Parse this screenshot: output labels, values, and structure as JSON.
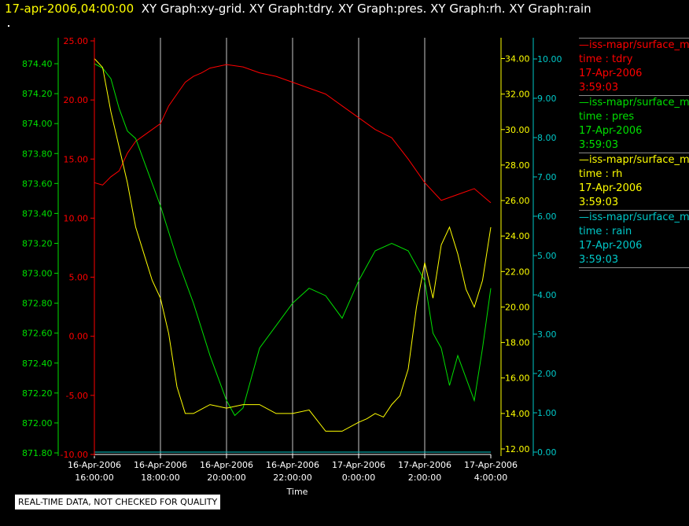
{
  "header": {
    "timestamp": "17-apr-2006,04:00:00",
    "titles": "XY Graph:xy-grid.  XY Graph:tdry.  XY Graph:pres.  XY Graph:rh.  XY Graph:rain"
  },
  "disclaimer": "REAL-TIME DATA, NOT CHECKED FOR QUALITY",
  "colors": {
    "tdry": "#ff0000",
    "pres": "#00e000",
    "rh": "#ffff00",
    "rain": "#00c8c8",
    "grid": "#c8c8c8",
    "axis_text": "#ffffff"
  },
  "legend": [
    {
      "source": "—iss-mapr/surface_m",
      "field": "time : tdry",
      "date": "17-Apr-2006",
      "time": "3:59:03",
      "color": "#ff0000"
    },
    {
      "source": "—iss-mapr/surface_m",
      "field": "time : pres",
      "date": "17-Apr-2006",
      "time": "3:59:03",
      "color": "#00e000"
    },
    {
      "source": "—iss-mapr/surface_m",
      "field": "time : rh",
      "date": "17-Apr-2006",
      "time": "3:59:03",
      "color": "#ffff00"
    },
    {
      "source": "—iss-mapr/surface_m",
      "field": "time : rain",
      "date": "17-Apr-2006",
      "time": "3:59:03",
      "color": "#00c8c8"
    }
  ],
  "chart_data": {
    "type": "line",
    "xlabel": "Time",
    "x_ticks": [
      {
        "date": "16-Apr-2006",
        "time": "16:00:00"
      },
      {
        "date": "16-Apr-2006",
        "time": "18:00:00"
      },
      {
        "date": "16-Apr-2006",
        "time": "20:00:00"
      },
      {
        "date": "16-Apr-2006",
        "time": "22:00:00"
      },
      {
        "date": "17-Apr-2006",
        "time": "0:00:00"
      },
      {
        "date": "17-Apr-2006",
        "time": "2:00:00"
      },
      {
        "date": "17-Apr-2006",
        "time": "4:00:00"
      }
    ],
    "x_range_hours": [
      16,
      28
    ],
    "grid": "vertical",
    "axes": {
      "tdry": {
        "ylim": [
          -10,
          25
        ],
        "ticks": [
          "25.00",
          "20.00",
          "15.00",
          "10.00",
          "5.00",
          "0.00",
          "-5.00",
          "-10.00"
        ]
      },
      "pres": {
        "ylim": [
          871.8,
          874.5
        ],
        "ticks": [
          "874.40",
          "874.20",
          "874.00",
          "873.80",
          "873.60",
          "873.40",
          "873.20",
          "873.00",
          "872.80",
          "872.60",
          "872.40",
          "872.20",
          "872.00",
          "871.80"
        ]
      },
      "rh": {
        "ylim": [
          12,
          34.2
        ],
        "ticks": [
          "34.00",
          "32.00",
          "30.00",
          "28.00",
          "26.00",
          "24.00",
          "22.00",
          "20.00",
          "18.00",
          "16.00",
          "14.00",
          "12.00"
        ]
      },
      "rain": {
        "ylim": [
          0,
          10
        ],
        "ticks": [
          "10.00",
          "9.00",
          "8.00",
          "7.00",
          "6.00",
          "5.00",
          "4.00",
          "3.00",
          "2.00",
          "1.00",
          "0.00"
        ]
      }
    },
    "series": [
      {
        "name": "tdry",
        "axis": "tdry",
        "x": [
          16.0,
          16.25,
          16.5,
          16.75,
          17.0,
          17.25,
          17.5,
          17.75,
          18.0,
          18.25,
          18.5,
          18.75,
          19.0,
          19.25,
          19.5,
          20.0,
          20.5,
          21.0,
          21.5,
          22.0,
          22.5,
          23.0,
          23.5,
          24.0,
          24.5,
          25.0,
          25.5,
          26.0,
          26.5,
          27.0,
          27.5,
          28.0
        ],
        "values": [
          13.0,
          12.8,
          13.5,
          14.0,
          15.5,
          16.5,
          17.0,
          17.5,
          18.0,
          19.5,
          20.5,
          21.5,
          22.0,
          22.3,
          22.7,
          23.0,
          22.8,
          22.3,
          22.0,
          21.5,
          21.0,
          20.5,
          19.5,
          18.5,
          17.5,
          16.8,
          15.0,
          13.0,
          11.5,
          12.0,
          12.5,
          11.3
        ]
      },
      {
        "name": "pres",
        "axis": "pres",
        "x": [
          16.0,
          16.25,
          16.5,
          16.75,
          17.0,
          17.25,
          17.5,
          17.75,
          18.0,
          18.5,
          19.0,
          19.5,
          20.0,
          20.25,
          20.5,
          20.75,
          21.0,
          21.5,
          22.0,
          22.5,
          23.0,
          23.5,
          24.0,
          24.5,
          25.0,
          25.5,
          26.0,
          26.25,
          26.5,
          26.75,
          27.0,
          27.25,
          27.5,
          27.75,
          28.0
        ],
        "values": [
          874.4,
          874.37,
          874.3,
          874.1,
          873.95,
          873.9,
          873.75,
          873.6,
          873.45,
          873.1,
          872.8,
          872.45,
          872.15,
          872.05,
          872.1,
          872.3,
          872.5,
          872.65,
          872.8,
          872.9,
          872.85,
          872.7,
          872.95,
          873.15,
          873.2,
          873.15,
          872.95,
          872.6,
          872.5,
          872.25,
          872.45,
          872.3,
          872.15,
          872.5,
          872.9
        ]
      },
      {
        "name": "rh",
        "axis": "rh",
        "x": [
          16.0,
          16.25,
          16.5,
          16.75,
          17.0,
          17.25,
          17.5,
          17.75,
          18.0,
          18.25,
          18.5,
          18.75,
          19.0,
          19.5,
          20.0,
          20.5,
          21.0,
          21.5,
          22.0,
          22.5,
          23.0,
          23.5,
          24.0,
          24.25,
          24.5,
          24.75,
          25.0,
          25.25,
          25.5,
          25.75,
          26.0,
          26.25,
          26.5,
          26.75,
          27.0,
          27.25,
          27.5,
          27.75,
          28.0
        ],
        "values": [
          34.0,
          33.5,
          31.0,
          29.0,
          27.0,
          24.5,
          23.0,
          21.5,
          20.5,
          18.5,
          15.5,
          14.0,
          14.0,
          14.5,
          14.3,
          14.5,
          14.5,
          14.0,
          14.0,
          14.2,
          13.0,
          13.0,
          13.5,
          13.7,
          14.0,
          13.8,
          14.5,
          15.0,
          16.5,
          20.0,
          22.5,
          20.5,
          23.5,
          24.5,
          23.0,
          21.0,
          20.0,
          21.5,
          24.5
        ]
      },
      {
        "name": "rain",
        "axis": "rain",
        "x": [
          16.0,
          28.0
        ],
        "values": [
          0.0,
          0.0
        ]
      }
    ]
  }
}
